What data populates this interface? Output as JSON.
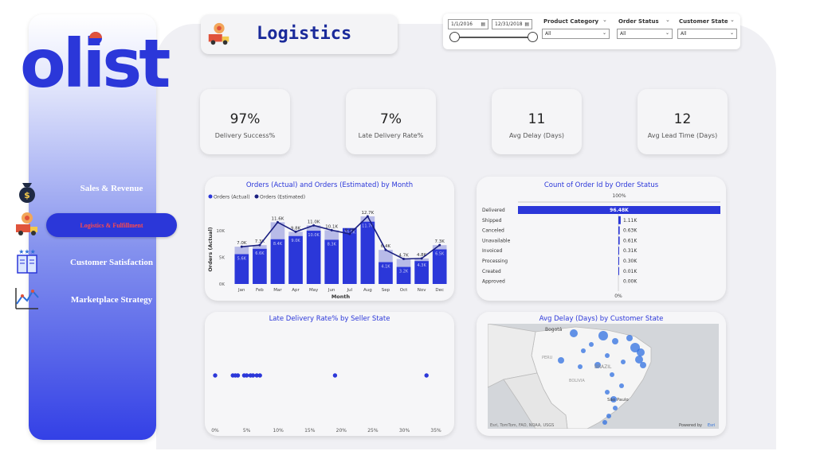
{
  "brand": {
    "logo_text": "olist",
    "color": "#2b37d9",
    "accent": "#e0533b"
  },
  "nav": [
    {
      "label": "Sales & Revenue",
      "icon": "money-bag-icon",
      "active": false
    },
    {
      "label": "Logistics & Fulfillment",
      "icon": "delivery-truck-icon",
      "active": true
    },
    {
      "label": "Customer Satisfaction",
      "icon": "rating-book-icon",
      "active": false
    },
    {
      "label": "Marketplace Strategy",
      "icon": "strategy-chart-icon",
      "active": false
    }
  ],
  "page": {
    "title": "Logistics",
    "title_icon": "delivery-truck-icon"
  },
  "filters": {
    "date_start": "1/1/2016",
    "date_end": "12/31/2018",
    "product_category": {
      "label": "Product Category",
      "value": "All"
    },
    "order_status": {
      "label": "Order Status",
      "value": "All"
    },
    "customer_state": {
      "label": "Customer State",
      "value": "All"
    }
  },
  "kpis": [
    {
      "value": "97%",
      "label": "Delivery Success%"
    },
    {
      "value": "7%",
      "label": "Late Delivery Rate%"
    },
    {
      "value": "11",
      "label": "Avg Delay (Days)"
    },
    {
      "value": "12",
      "label": "Avg Lead Time (Days)"
    }
  ],
  "chart_data": [
    {
      "type": "bar",
      "title": "Orders (Actual) and Orders (Estimated) by Month",
      "legend": [
        "Orders (Actual)",
        "Orders (Estimated)"
      ],
      "xlabel": "Month",
      "ylabel": "Orders (Actual)",
      "ylim": [
        0,
        13000
      ],
      "yticks": [
        "0K",
        "5K",
        "10K"
      ],
      "categories": [
        "Jan",
        "Feb",
        "Mar",
        "Apr",
        "May",
        "Jun",
        "Jul",
        "Aug",
        "Sep",
        "Oct",
        "Nov",
        "Dec"
      ],
      "series": [
        {
          "name": "Orders (Actual)",
          "values": [
            5600,
            6600,
            8400,
            9000,
            10000,
            8300,
            10500,
            11700,
            4100,
            3200,
            4300,
            6500
          ],
          "labels": [
            "5.6K",
            "6.6K",
            "8.4K",
            "9.0K",
            "10.0K",
            "8.3K",
            "10.5K",
            "11.7K",
            "4.1K",
            "3.2K",
            "4.3K",
            "6.5K"
          ]
        },
        {
          "name": "Orders (Estimated)",
          "values": [
            7000,
            7300,
            11600,
            9800,
            11000,
            10100,
            9400,
            12700,
            6400,
            4700,
            4800,
            7300
          ],
          "labels": [
            "7.0K",
            "7.3K",
            "11.6K",
            "9.8K",
            "11.0K",
            "10.1K",
            "9.4K",
            "12.7K",
            "6.4K",
            "4.7K",
            "4.8K",
            "7.3K"
          ]
        }
      ],
      "colors": {
        "actual": "#2b37d9",
        "estimated_bar": "#b8bbe8",
        "line": "#1a1f80"
      }
    },
    {
      "type": "bar",
      "title": "Count of Order Id by Order Status",
      "top_label": "100%",
      "bottom_label": "0%",
      "categories": [
        "Delivered",
        "Shipped",
        "Canceled",
        "Unavailable",
        "Invoiced",
        "Processing",
        "Created",
        "Approved"
      ],
      "values": [
        96480,
        1110,
        630,
        610,
        310,
        300,
        10,
        0
      ],
      "labels": [
        "96.48K",
        "1.11K",
        "0.63K",
        "0.61K",
        "0.31K",
        "0.30K",
        "0.01K",
        "0.00K"
      ]
    },
    {
      "type": "scatter",
      "title": "Late Delivery Rate% by Seller State",
      "xticks": [
        "0%",
        "5%",
        "10%",
        "15%",
        "20%",
        "25%",
        "30%",
        "35%"
      ],
      "xlim": [
        0,
        36
      ],
      "x": [
        0,
        2.8,
        3.2,
        3.6,
        4.6,
        5.0,
        5.6,
        6.0,
        6.6,
        7.1,
        19.0,
        33.5
      ]
    }
  ],
  "map": {
    "title": "Avg Delay (Days) by Customer State",
    "labels": {
      "bogota": "Bogotá",
      "brazil": "BRAZIL",
      "sao_paulo": "São Paulo",
      "peru": "PERU",
      "bolivia": "BOLIVIA"
    },
    "attribution": "Esri, TomTom, FAO, NOAA, USGS",
    "powered": "Powered by",
    "esri": "Esri"
  }
}
